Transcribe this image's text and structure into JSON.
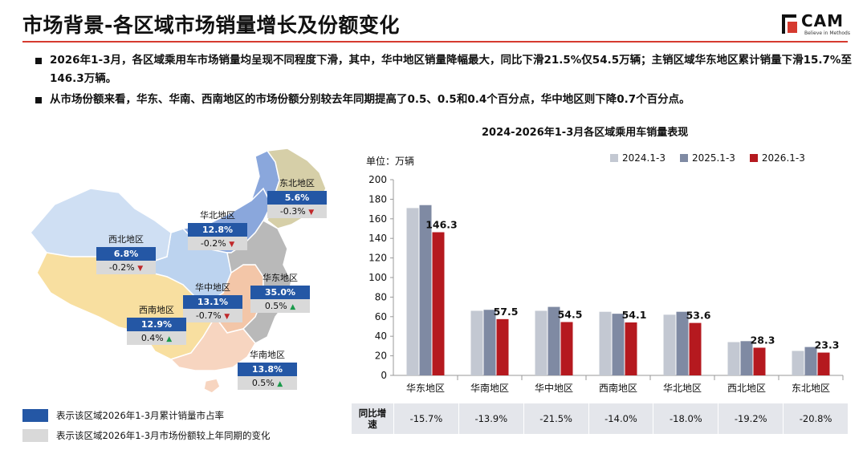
{
  "header": {
    "title": "市场背景-各区域市场销量增长及份额变化",
    "logo_text": "CAM",
    "logo_sub": "Believe in Methods"
  },
  "bullets": [
    "2026年1-3月，各区域乘用车市场销量均呈现不同程度下滑，其中，华中地区销量降幅最大，同比下滑21.5%仅54.5万辆；主销区域华东地区累计销量下滑15.7%至146.3万辆。",
    "从市场份额来看，华东、华南、西南地区的市场份额分别较去年同期提高了0.5、0.5和0.4个百分点，华中地区则下降0.7个百分点。"
  ],
  "colors": {
    "s2024": "#c3c8d2",
    "s2025": "#7f8aa3",
    "s2026": "#b5191f",
    "share_box": "#2457a5",
    "change_box": "#d9d9d9",
    "accent": "#d63a2f"
  },
  "chart_data": {
    "type": "bar",
    "title": "2024-2026年1-3月各区域乘用车销量表现",
    "unit_label": "单位：万辆",
    "categories": [
      "华东地区",
      "华南地区",
      "华中地区",
      "西南地区",
      "华北地区",
      "西北地区",
      "东北地区"
    ],
    "series": [
      {
        "name": "2024.1-3",
        "values": [
          171,
          66,
          66,
          65,
          62,
          34,
          25
        ]
      },
      {
        "name": "2025.1-3",
        "values": [
          174,
          67,
          70,
          63,
          65,
          35,
          29
        ]
      },
      {
        "name": "2026.1-3",
        "values": [
          146.3,
          57.5,
          54.5,
          54.1,
          53.6,
          28.3,
          23.3
        ]
      }
    ],
    "data_labels": [
      "146.3",
      "57.5",
      "54.5",
      "54.1",
      "53.6",
      "28.3",
      "23.3"
    ],
    "ylim": [
      0,
      200
    ],
    "yticks": [
      0,
      20,
      40,
      60,
      80,
      100,
      120,
      140,
      160,
      180,
      200
    ],
    "growth_header": "同比增速",
    "growth": [
      "-15.7%",
      "-13.9%",
      "-21.5%",
      "-14.0%",
      "-18.0%",
      "-19.2%",
      "-20.8%"
    ]
  },
  "map": {
    "regions": [
      {
        "name": "东北地区",
        "share": "5.6%",
        "change": "-0.3%",
        "dir": "down"
      },
      {
        "name": "华北地区",
        "share": "12.8%",
        "change": "-0.2%",
        "dir": "down"
      },
      {
        "name": "西北地区",
        "share": "6.8%",
        "change": "-0.2%",
        "dir": "down"
      },
      {
        "name": "华东地区",
        "share": "35.0%",
        "change": "0.5%",
        "dir": "up"
      },
      {
        "name": "华中地区",
        "share": "13.1%",
        "change": "-0.7%",
        "dir": "down"
      },
      {
        "name": "西南地区",
        "share": "12.9%",
        "change": "0.4%",
        "dir": "up"
      },
      {
        "name": "华南地区",
        "share": "13.8%",
        "change": "0.5%",
        "dir": "up"
      }
    ],
    "legend_share": "表示该区域2026年1-3月累计销量市占率",
    "legend_change": "表示该区域2026年1-3月市场份额较上年同期的变化"
  }
}
